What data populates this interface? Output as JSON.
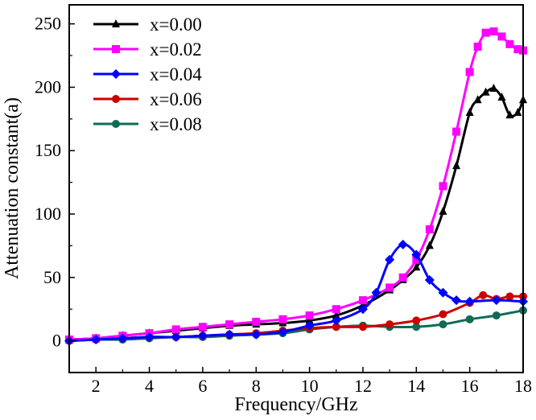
{
  "chart_data": {
    "type": "line",
    "title": "",
    "xlabel": "Frequency/GHz",
    "ylabel": "Attenuation constant(a)",
    "xlim": [
      1,
      18
    ],
    "ylim": [
      -25,
      265
    ],
    "xticks": [
      2,
      4,
      6,
      8,
      10,
      12,
      14,
      16,
      18
    ],
    "yticks": [
      0,
      50,
      100,
      150,
      200,
      250
    ],
    "grid": false,
    "legend_position": "top-left",
    "series": [
      {
        "name": "x=0.00",
        "color": "#000000",
        "marker": "triangle",
        "x": [
          1,
          2,
          3,
          4,
          5,
          6,
          7,
          8,
          9,
          10,
          11,
          12,
          13,
          13.5,
          14,
          14.5,
          15,
          15.5,
          16,
          16.3,
          16.6,
          16.9,
          17.2,
          17.5,
          17.8,
          18
        ],
        "y": [
          1,
          2,
          4,
          6,
          8,
          10,
          12,
          13,
          14,
          16,
          20,
          28,
          40,
          48,
          58,
          75,
          102,
          138,
          180,
          190,
          196,
          199,
          192,
          178,
          180,
          190
        ]
      },
      {
        "name": "x=0.02",
        "color": "#ff00ff",
        "marker": "square",
        "x": [
          1,
          2,
          3,
          4,
          5,
          6,
          7,
          8,
          9,
          10,
          11,
          12,
          13,
          13.5,
          14,
          14.5,
          15,
          15.5,
          16,
          16.3,
          16.6,
          16.9,
          17.2,
          17.5,
          17.8,
          18
        ],
        "y": [
          1,
          2,
          4,
          6,
          9,
          11,
          13,
          15,
          17,
          20,
          25,
          32,
          42,
          50,
          64,
          88,
          122,
          165,
          212,
          232,
          243,
          244,
          240,
          234,
          230,
          229
        ]
      },
      {
        "name": "x=0.04",
        "color": "#0000ff",
        "marker": "diamond",
        "x": [
          1,
          2,
          3,
          4,
          5,
          6,
          7,
          8,
          9,
          10,
          11,
          12,
          12.5,
          13,
          13.5,
          14,
          14.5,
          15,
          15.5,
          16,
          17,
          18
        ],
        "y": [
          0,
          1,
          2,
          3,
          3,
          4,
          5,
          5,
          7,
          12,
          16,
          25,
          38,
          64,
          76,
          68,
          48,
          38,
          32,
          31,
          32,
          31
        ]
      },
      {
        "name": "x=0.06",
        "color": "#cc0000",
        "marker": "circle",
        "x": [
          1,
          2,
          3,
          4,
          5,
          6,
          7,
          8,
          9,
          10,
          11,
          12,
          13,
          14,
          15,
          16,
          16.5,
          17,
          17.5,
          18
        ],
        "y": [
          0,
          1,
          2,
          3,
          3,
          4,
          5,
          6,
          8,
          10,
          11,
          11,
          13,
          16,
          21,
          30,
          36,
          33,
          35,
          35
        ]
      },
      {
        "name": "x=0.08",
        "color": "#0e6b55",
        "marker": "circle",
        "x": [
          1,
          2,
          3,
          4,
          5,
          6,
          7,
          8,
          9,
          10,
          11,
          12,
          13,
          14,
          15,
          16,
          17,
          18
        ],
        "y": [
          0,
          1,
          1,
          2,
          3,
          3,
          4,
          5,
          6,
          9,
          11,
          12,
          11,
          11,
          13,
          17,
          20,
          24
        ]
      }
    ]
  }
}
